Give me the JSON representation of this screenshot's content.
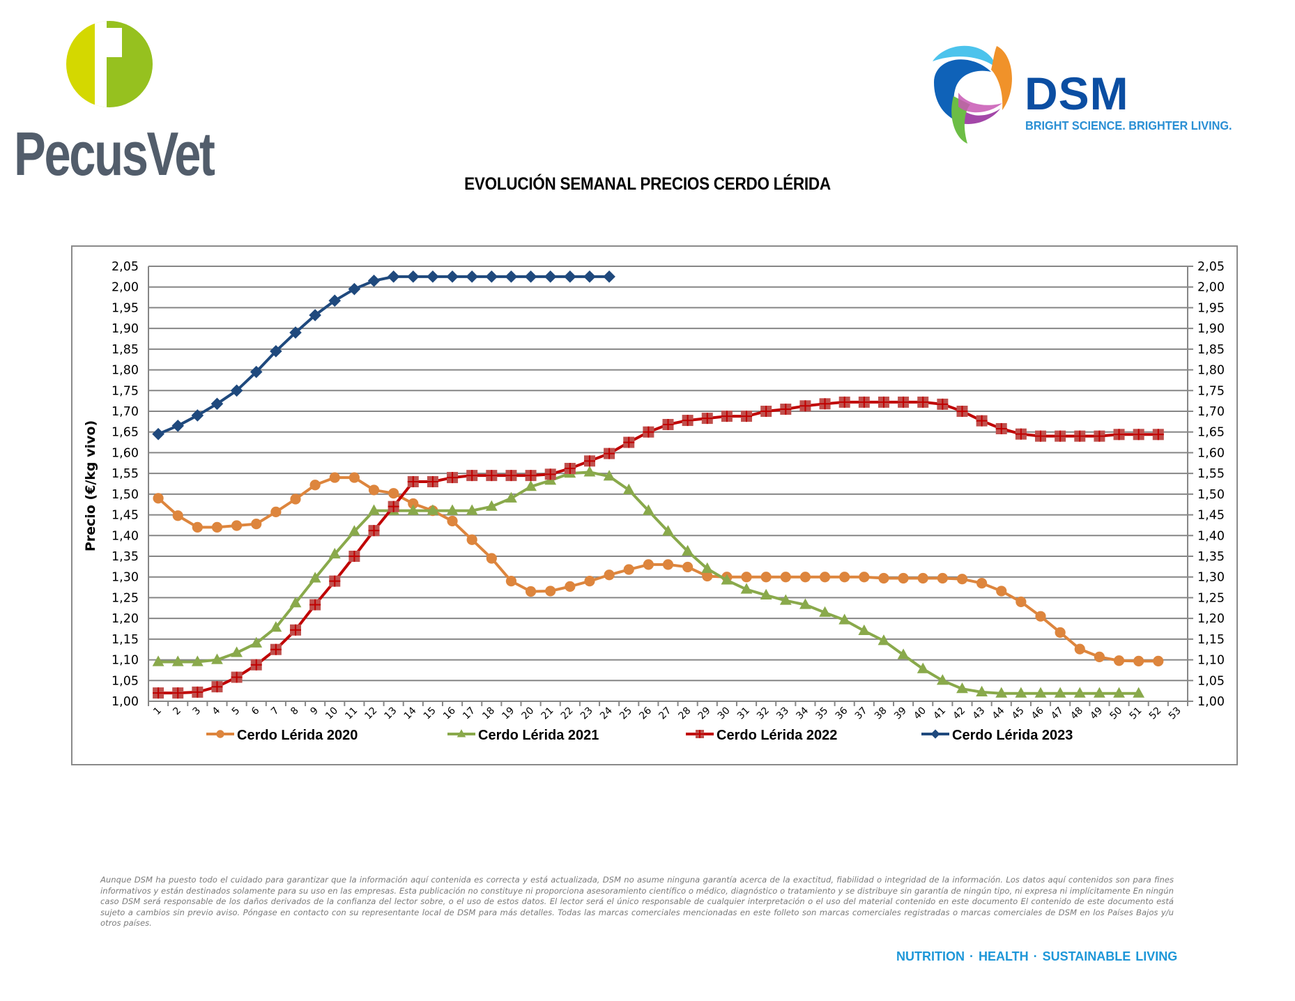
{
  "header": {
    "left_logo_text": "PecusVet",
    "right_logo_text": "DSM",
    "right_logo_tagline": "BRIGHT SCIENCE. BRIGHTER LIVING."
  },
  "colors": {
    "pecusvet_text": "#525d6b",
    "pecusvet_light_green": "#d4d800",
    "pecusvet_green": "#96c11f",
    "dsm_blue": "#0b4ea2",
    "dsm_light_blue": "#2a8fd4"
  },
  "chart_data": {
    "type": "line",
    "title": "EVOLUCIÓN SEMANAL PRECIOS CERDO LÉRIDA",
    "xlabel": "",
    "ylabel": "Precio (€/kg vivo)",
    "ylim": [
      1.0,
      2.05
    ],
    "ytick_step": 0.05,
    "yticks": [
      "1,00",
      "1,05",
      "1,10",
      "1,15",
      "1,20",
      "1,25",
      "1,30",
      "1,35",
      "1,40",
      "1,45",
      "1,50",
      "1,55",
      "1,60",
      "1,65",
      "1,70",
      "1,75",
      "1,80",
      "1,85",
      "1,90",
      "1,95",
      "2,00",
      "2,05"
    ],
    "secondary_y_axis_mirrors_primary": true,
    "categories": [
      "1",
      "2",
      "3",
      "4",
      "5",
      "6",
      "7",
      "8",
      "9",
      "10",
      "11",
      "12",
      "13",
      "14",
      "15",
      "16",
      "17",
      "18",
      "19",
      "20",
      "21",
      "22",
      "23",
      "24",
      "25",
      "26",
      "27",
      "28",
      "29",
      "30",
      "31",
      "32",
      "33",
      "34",
      "35",
      "36",
      "37",
      "38",
      "39",
      "40",
      "41",
      "42",
      "43",
      "44",
      "45",
      "46",
      "47",
      "48",
      "49",
      "50",
      "51",
      "52",
      "53"
    ],
    "grid": "horizontal",
    "legend_position": "bottom",
    "series": [
      {
        "name": "Cerdo Lérida 2020",
        "color": "#dd853d",
        "marker": "circle",
        "values": [
          1.49,
          1.448,
          1.42,
          1.42,
          1.424,
          1.428,
          1.457,
          1.488,
          1.522,
          1.54,
          1.54,
          1.51,
          1.502,
          1.477,
          1.46,
          1.435,
          1.39,
          1.345,
          1.29,
          1.265,
          1.266,
          1.277,
          1.29,
          1.305,
          1.318,
          1.33,
          1.33,
          1.324,
          1.302,
          1.3,
          1.3,
          1.3,
          1.3,
          1.3,
          1.3,
          1.3,
          1.3,
          1.297,
          1.297,
          1.297,
          1.297,
          1.295,
          1.285,
          1.266,
          1.24,
          1.205,
          1.166,
          1.126,
          1.107,
          1.098,
          1.097,
          1.097
        ]
      },
      {
        "name": "Cerdo Lérida 2021",
        "color": "#89a94b",
        "marker": "triangle",
        "values": [
          1.095,
          1.095,
          1.095,
          1.1,
          1.117,
          1.14,
          1.178,
          1.237,
          1.297,
          1.355,
          1.41,
          1.46,
          1.46,
          1.46,
          1.46,
          1.46,
          1.46,
          1.47,
          1.49,
          1.518,
          1.533,
          1.55,
          1.553,
          1.543,
          1.51,
          1.46,
          1.41,
          1.362,
          1.32,
          1.292,
          1.27,
          1.256,
          1.243,
          1.233,
          1.214,
          1.196,
          1.17,
          1.146,
          1.112,
          1.078,
          1.05,
          1.03,
          1.022,
          1.019,
          1.019,
          1.019,
          1.019,
          1.019,
          1.019,
          1.019,
          1.019
        ]
      },
      {
        "name": "Cerdo Lérida 2022",
        "color": "#c00000",
        "marker_fill": "#c0504d",
        "marker": "square-plus",
        "values": [
          1.02,
          1.02,
          1.022,
          1.035,
          1.058,
          1.088,
          1.125,
          1.172,
          1.233,
          1.29,
          1.35,
          1.412,
          1.47,
          1.53,
          1.53,
          1.54,
          1.545,
          1.545,
          1.545,
          1.545,
          1.548,
          1.562,
          1.58,
          1.598,
          1.625,
          1.65,
          1.668,
          1.678,
          1.683,
          1.688,
          1.688,
          1.7,
          1.705,
          1.713,
          1.718,
          1.722,
          1.722,
          1.722,
          1.722,
          1.722,
          1.717,
          1.7,
          1.677,
          1.658,
          1.645,
          1.64,
          1.64,
          1.64,
          1.64,
          1.644,
          1.644,
          1.644
        ]
      },
      {
        "name": "Cerdo Lérida 2023",
        "color": "#1f497d",
        "marker": "diamond",
        "values": [
          1.645,
          1.665,
          1.69,
          1.718,
          1.75,
          1.795,
          1.845,
          1.89,
          1.932,
          1.967,
          1.995,
          2.015,
          2.025,
          2.025,
          2.025,
          2.025,
          2.025,
          2.025,
          2.025,
          2.025,
          2.025,
          2.025,
          2.025,
          2.025
        ]
      }
    ]
  },
  "footer": {
    "disclaimer": "Aunque DSM ha puesto todo el cuidado para garantizar que la información aquí contenida es correcta y está actualizada, DSM no asume ninguna garantía acerca de la exactitud, fiabilidad o integridad de la información. Los datos aquí contenidos son para fines informativos y están destinados solamente para su uso en las empresas. Esta publicación no constituye ni proporciona asesoramiento científico o médico, diagnóstico o tratamiento y se distribuye sin garantía de ningún tipo, ni expresa ni implícitamente En ningún caso DSM será responsable de los daños derivados de la confianza del lector sobre, o el uso de estos datos. El lector será el único responsable de cualquier interpretación o el uso del material contenido en este documento El contenido de este documento está sujeto a cambios sin previo aviso. Póngase en contacto con su representante local de DSM para más detalles. Todas las marcas comerciales mencionadas en este folleto son marcas comerciales registradas o marcas comerciales de DSM en los Países Bajos y/u otros países.",
    "tagline": "NUTRITION · HEALTH · SUSTAINABLE LIVING"
  }
}
